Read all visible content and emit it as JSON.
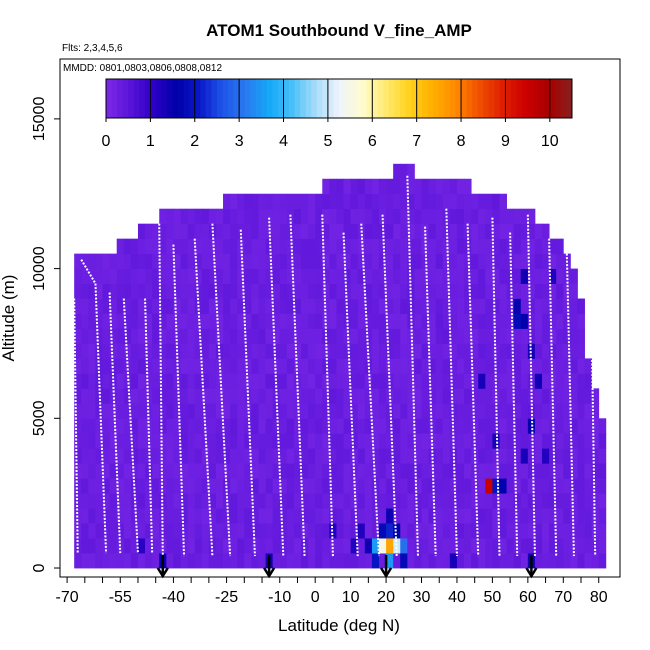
{
  "chart_data": {
    "type": "heatmap",
    "title": "ATOM1 Southbound V_fine_AMP",
    "subtitle_flights": "Flts: 2,3,4,5,6",
    "subtitle_dates": "MMDD: 0801,0803,0806,0808,0812",
    "xlabel": "Latitude (deg N)",
    "ylabel": "Altitude (m)",
    "xlim": [
      -70,
      85
    ],
    "ylim": [
      0,
      17500
    ],
    "x_ticks": [
      "-70",
      "-55",
      "-40",
      "-25",
      "-10",
      "0",
      "10",
      "20",
      "30",
      "40",
      "50",
      "60",
      "70",
      "80"
    ],
    "x_tick_values": [
      -70,
      -55,
      -40,
      -25,
      -10,
      0,
      10,
      20,
      30,
      40,
      50,
      60,
      70,
      80
    ],
    "x_ticks_all": [
      -70,
      -65,
      -60,
      -55,
      -50,
      -45,
      -40,
      -35,
      -30,
      -25,
      -20,
      -15,
      -10,
      -5,
      0,
      5,
      10,
      15,
      20,
      25,
      30,
      35,
      40,
      45,
      50,
      55,
      60,
      65,
      70,
      75,
      80
    ],
    "y_ticks": [
      "0",
      "5000",
      "10000",
      "15000"
    ],
    "y_tick_values": [
      0,
      5000,
      10000,
      15000
    ],
    "colorbar": {
      "min": 0,
      "max": 10.5,
      "tick_labels": [
        "0",
        "1",
        "2",
        "3",
        "4",
        "5",
        "6",
        "7",
        "8",
        "9",
        "10"
      ],
      "tick_values": [
        0,
        1,
        2,
        3,
        4,
        5,
        6,
        7,
        8,
        9,
        10
      ],
      "colors": [
        "#7d2ae8",
        "#5a14d8",
        "#2e00c8",
        "#0000a8",
        "#0a18c8",
        "#1e54e8",
        "#2a7af0",
        "#14a8f8",
        "#4ac0f8",
        "#a8dcf8",
        "#eef4fc",
        "#fffbd0",
        "#ffea70",
        "#ffd21e",
        "#ffb000",
        "#ff8a00",
        "#f05000",
        "#e02000",
        "#cc0000",
        "#a80000",
        "#882020"
      ]
    },
    "background_value": 0.3,
    "column_tops": [
      {
        "lat": -68,
        "top": 10500
      },
      {
        "lat": -60,
        "top": 10500
      },
      {
        "lat": -56,
        "top": 11000
      },
      {
        "lat": -50,
        "top": 11500
      },
      {
        "lat": -44,
        "top": 12000
      },
      {
        "lat": -30,
        "top": 12000
      },
      {
        "lat": -26,
        "top": 12500
      },
      {
        "lat": 0,
        "top": 12500
      },
      {
        "lat": 2,
        "top": 13000
      },
      {
        "lat": 20,
        "top": 13000
      },
      {
        "lat": 22,
        "top": 13500
      },
      {
        "lat": 26,
        "top": 13500
      },
      {
        "lat": 28,
        "top": 13000
      },
      {
        "lat": 42,
        "top": 13000
      },
      {
        "lat": 44,
        "top": 12500
      },
      {
        "lat": 50,
        "top": 12500
      },
      {
        "lat": 54,
        "top": 12000
      },
      {
        "lat": 60,
        "top": 12000
      },
      {
        "lat": 62,
        "top": 11500
      },
      {
        "lat": 66,
        "top": 11000
      },
      {
        "lat": 70,
        "top": 10500
      },
      {
        "lat": 72,
        "top": 10000
      },
      {
        "lat": 74,
        "top": 9000
      },
      {
        "lat": 76,
        "top": 7000
      },
      {
        "lat": 78,
        "top": 6000
      },
      {
        "lat": 79,
        "top": 5000
      },
      {
        "lat": 81,
        "top": 0
      }
    ],
    "high_value_cells": [
      {
        "lat": 20,
        "alt": 750,
        "value": 7.5
      },
      {
        "lat": 18,
        "alt": 750,
        "value": 5.5
      },
      {
        "lat": 22,
        "alt": 750,
        "value": 5.0
      },
      {
        "lat": 16,
        "alt": 750,
        "value": 3.5
      },
      {
        "lat": 24,
        "alt": 750,
        "value": 3.0
      },
      {
        "lat": 20,
        "alt": 1250,
        "value": 2.2
      },
      {
        "lat": 18,
        "alt": 1250,
        "value": 1.8
      },
      {
        "lat": 22,
        "alt": 1250,
        "value": 1.6
      },
      {
        "lat": 16,
        "alt": 250,
        "value": 2.0
      },
      {
        "lat": 20,
        "alt": 250,
        "value": 3.5
      },
      {
        "lat": 24,
        "alt": 250,
        "value": 1.8
      },
      {
        "lat": 14,
        "alt": 750,
        "value": 1.4
      },
      {
        "lat": 12,
        "alt": 1250,
        "value": 1.2
      },
      {
        "lat": 10,
        "alt": 750,
        "value": 1.2
      },
      {
        "lat": 20,
        "alt": 1750,
        "value": 1.4
      },
      {
        "lat": 48,
        "alt": 2750,
        "value": 9.5
      },
      {
        "lat": 50,
        "alt": 2750,
        "value": 2.0
      },
      {
        "lat": 52,
        "alt": 2750,
        "value": 1.6
      },
      {
        "lat": 56,
        "alt": 8250,
        "value": 1.8
      },
      {
        "lat": 58,
        "alt": 8250,
        "value": 1.6
      },
      {
        "lat": 56,
        "alt": 8750,
        "value": 1.5
      },
      {
        "lat": 58,
        "alt": 9750,
        "value": 1.4
      },
      {
        "lat": 60,
        "alt": 7250,
        "value": 1.3
      },
      {
        "lat": 62,
        "alt": 6250,
        "value": 1.4
      },
      {
        "lat": 60,
        "alt": 4750,
        "value": 1.5
      },
      {
        "lat": 58,
        "alt": 3750,
        "value": 1.3
      },
      {
        "lat": 64,
        "alt": 3750,
        "value": 1.2
      },
      {
        "lat": 66,
        "alt": 9750,
        "value": 1.2
      },
      {
        "lat": 50,
        "alt": 4250,
        "value": 1.3
      },
      {
        "lat": 46,
        "alt": 6250,
        "value": 1.3
      },
      {
        "lat": 60,
        "alt": 250,
        "value": 1.4
      },
      {
        "lat": -44,
        "alt": 250,
        "value": 1.5
      },
      {
        "lat": -14,
        "alt": 250,
        "value": 1.4
      },
      {
        "lat": 38,
        "alt": 250,
        "value": 1.3
      },
      {
        "lat": 4,
        "alt": 1250,
        "value": 1.2
      },
      {
        "lat": -50,
        "alt": 750,
        "value": 1.1
      }
    ],
    "flight_tracks": [
      {
        "lat_start": -68,
        "lat_end": -67,
        "alt_start": 9000,
        "alt_end": 500
      },
      {
        "lat_start": -66,
        "lat_end": -62,
        "alt_start": 10300,
        "alt_end": 9500
      },
      {
        "lat_start": -62,
        "lat_end": -59,
        "alt_start": 9500,
        "alt_end": 500
      },
      {
        "lat_start": -58,
        "lat_end": -55,
        "alt_start": 9200,
        "alt_end": 500
      },
      {
        "lat_start": -54,
        "lat_end": -50,
        "alt_start": 9000,
        "alt_end": 500
      },
      {
        "lat_start": -48,
        "lat_end": -46,
        "alt_start": 9000,
        "alt_end": 500
      },
      {
        "lat_start": -44,
        "lat_end": -43,
        "alt_start": 11500,
        "alt_end": 400
      },
      {
        "lat_start": -40,
        "lat_end": -37,
        "alt_start": 10800,
        "alt_end": 400
      },
      {
        "lat_start": -34,
        "lat_end": -29,
        "alt_start": 11000,
        "alt_end": 400
      },
      {
        "lat_start": -29,
        "lat_end": -24,
        "alt_start": 11500,
        "alt_end": 400
      },
      {
        "lat_start": -21,
        "lat_end": -17,
        "alt_start": 11300,
        "alt_end": 400
      },
      {
        "lat_start": -13,
        "lat_end": -9,
        "alt_start": 11700,
        "alt_end": 400
      },
      {
        "lat_start": -7,
        "lat_end": -3,
        "alt_start": 11800,
        "alt_end": 400
      },
      {
        "lat_start": 2,
        "lat_end": 5,
        "alt_start": 11800,
        "alt_end": 400
      },
      {
        "lat_start": 8,
        "lat_end": 12,
        "alt_start": 11200,
        "alt_end": 400
      },
      {
        "lat_start": 13,
        "lat_end": 18,
        "alt_start": 11500,
        "alt_end": 400
      },
      {
        "lat_start": 19,
        "lat_end": 23,
        "alt_start": 11800,
        "alt_end": 400
      },
      {
        "lat_start": 26,
        "lat_end": 29,
        "alt_start": 13100,
        "alt_end": 400
      },
      {
        "lat_start": 31,
        "lat_end": 34,
        "alt_start": 11400,
        "alt_end": 400
      },
      {
        "lat_start": 37,
        "lat_end": 40,
        "alt_start": 12000,
        "alt_end": 400
      },
      {
        "lat_start": 43,
        "lat_end": 46,
        "alt_start": 11500,
        "alt_end": 400
      },
      {
        "lat_start": 50,
        "lat_end": 52,
        "alt_start": 11700,
        "alt_end": 400
      },
      {
        "lat_start": 55,
        "lat_end": 57,
        "alt_start": 11200,
        "alt_end": 400
      },
      {
        "lat_start": 60,
        "lat_end": 62,
        "alt_start": 11800,
        "alt_end": 400
      },
      {
        "lat_start": 66,
        "lat_end": 68,
        "alt_start": 11000,
        "alt_end": 400
      },
      {
        "lat_start": 71,
        "lat_end": 73,
        "alt_start": 10500,
        "alt_end": 400
      },
      {
        "lat_start": 78,
        "lat_end": 79,
        "alt_start": 8000,
        "alt_end": 400
      }
    ],
    "arrows_lat": [
      -43,
      -13,
      20,
      61
    ]
  }
}
